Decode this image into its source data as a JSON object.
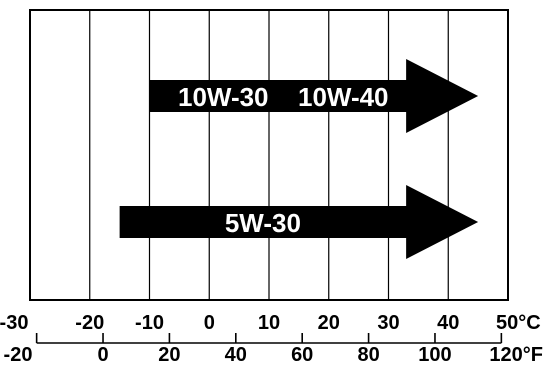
{
  "chart_data": {
    "type": "range",
    "title": "",
    "celsius_scale": {
      "unit": "°C",
      "ticks": [
        -30,
        -20,
        -10,
        0,
        10,
        20,
        30,
        40,
        50
      ],
      "tick_labels": [
        "-30",
        "-20",
        "-10",
        "0",
        "10",
        "20",
        "30",
        "40",
        "50"
      ]
    },
    "fahrenheit_scale": {
      "unit": "°F",
      "ticks": [
        -20,
        0,
        20,
        40,
        60,
        80,
        100,
        120
      ],
      "tick_labels": [
        "-20",
        "0",
        "20",
        "40",
        "60",
        "80",
        "100",
        "120"
      ]
    },
    "grid": true,
    "series": [
      {
        "name": "10W-30  10W-40",
        "labels": [
          "10W-30",
          "10W-40"
        ],
        "min_c": -10,
        "max_c": 45,
        "arrow": true
      },
      {
        "name": "5W-30",
        "labels": [
          "5W-30"
        ],
        "min_c": -15,
        "max_c": 45,
        "arrow": true
      }
    ],
    "colors": {
      "bar": "#000000",
      "bar_text": "#ffffff",
      "frame": "#000000",
      "background": "#ffffff"
    }
  }
}
